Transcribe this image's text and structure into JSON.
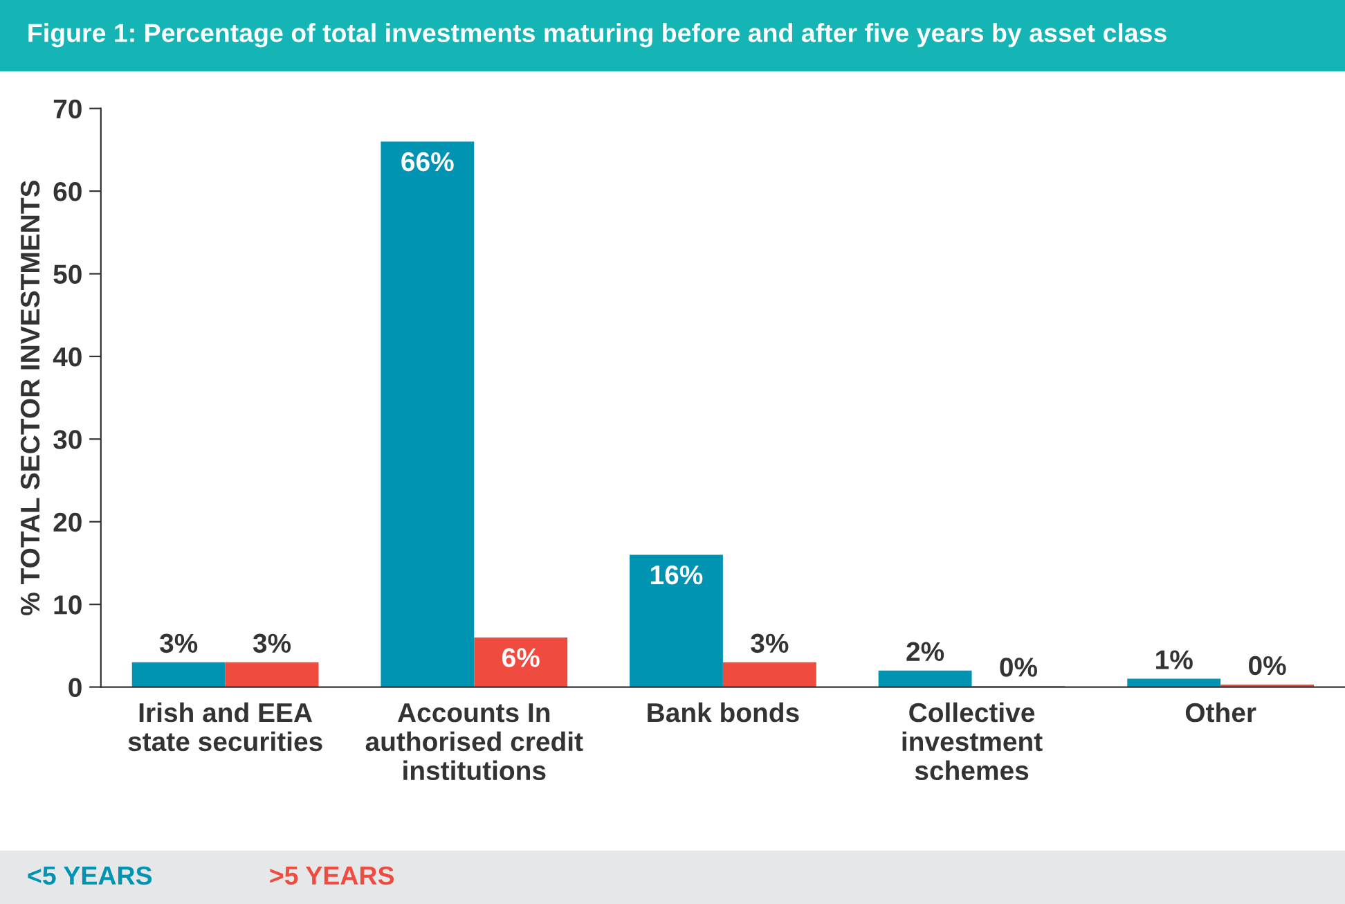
{
  "chart_data": {
    "type": "bar",
    "title": "Figure 1: Percentage of total investments maturing before and after five years by asset class",
    "ylabel": "% TOTAL SECTOR INVESTMENTS",
    "categories": [
      "Irish and EEA\nstate securities",
      "Accounts In\nauthorised credit\ninstitutions",
      "Bank bonds",
      "Collective\ninvestment\nschemes",
      "Other"
    ],
    "series": [
      {
        "name": "<5 YEARS",
        "color": "#0093b2",
        "values": [
          3,
          66,
          16,
          2,
          1
        ],
        "value_labels": [
          "3%",
          "66%",
          "16%",
          "2%",
          "1%"
        ]
      },
      {
        "name": ">5 YEARS",
        "color": "#ef4b3f",
        "values": [
          3,
          6,
          3,
          0.1,
          0.3
        ],
        "value_labels": [
          "3%",
          "6%",
          "3%",
          "0%",
          "0%"
        ]
      }
    ],
    "ylim": [
      0,
      70
    ],
    "yticks": [
      0,
      10,
      20,
      30,
      40,
      50,
      60,
      70
    ],
    "grid": false,
    "legend": "bottom"
  }
}
